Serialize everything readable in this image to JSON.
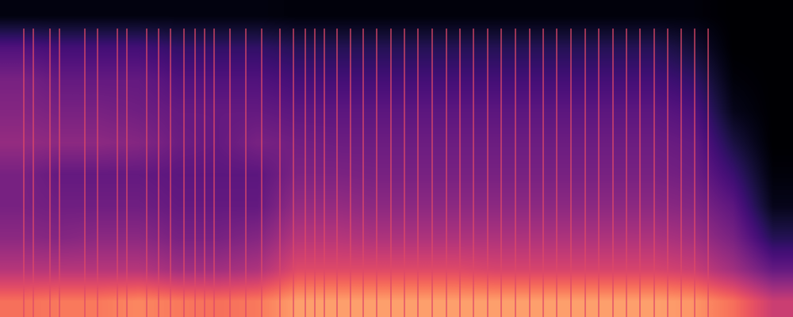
{
  "chart_data": {
    "type": "spectrogram",
    "color": "magma",
    "tick_labels": false,
    "grid": false,
    "xlim": [
      0,
      100
    ],
    "ylim": [
      0,
      100
    ],
    "clim": [
      0,
      1
    ],
    "cells": [
      [
        0.7,
        0.72,
        0.72,
        0.75,
        0.72,
        0.7,
        0.72,
        0.8,
        0.8,
        0.8,
        0.8,
        0.8,
        0.8,
        0.8,
        0.8,
        0.8,
        0.8,
        0.78,
        0.7,
        0.55
      ],
      [
        0.5,
        0.5,
        0.5,
        0.5,
        0.45,
        0.45,
        0.48,
        0.6,
        0.6,
        0.6,
        0.6,
        0.6,
        0.58,
        0.58,
        0.58,
        0.58,
        0.58,
        0.55,
        0.45,
        0.3
      ],
      [
        0.4,
        0.38,
        0.4,
        0.4,
        0.35,
        0.35,
        0.38,
        0.5,
        0.5,
        0.48,
        0.48,
        0.48,
        0.48,
        0.48,
        0.48,
        0.48,
        0.48,
        0.45,
        0.35,
        0.15
      ],
      [
        0.35,
        0.33,
        0.33,
        0.33,
        0.3,
        0.3,
        0.3,
        0.42,
        0.42,
        0.4,
        0.4,
        0.4,
        0.4,
        0.4,
        0.4,
        0.4,
        0.4,
        0.38,
        0.28,
        0.05
      ],
      [
        0.35,
        0.3,
        0.3,
        0.3,
        0.28,
        0.28,
        0.28,
        0.36,
        0.36,
        0.35,
        0.35,
        0.35,
        0.35,
        0.35,
        0.35,
        0.35,
        0.35,
        0.33,
        0.2,
        0.02
      ],
      [
        0.42,
        0.4,
        0.4,
        0.38,
        0.32,
        0.3,
        0.35,
        0.33,
        0.32,
        0.32,
        0.32,
        0.32,
        0.32,
        0.32,
        0.32,
        0.32,
        0.32,
        0.3,
        0.12,
        0.0
      ],
      [
        0.38,
        0.35,
        0.35,
        0.33,
        0.3,
        0.3,
        0.3,
        0.28,
        0.28,
        0.28,
        0.28,
        0.28,
        0.28,
        0.28,
        0.28,
        0.28,
        0.28,
        0.25,
        0.05,
        0.0
      ],
      [
        0.35,
        0.3,
        0.3,
        0.3,
        0.25,
        0.25,
        0.25,
        0.22,
        0.22,
        0.22,
        0.22,
        0.22,
        0.22,
        0.22,
        0.22,
        0.22,
        0.22,
        0.18,
        0.02,
        0.0
      ],
      [
        0.25,
        0.22,
        0.22,
        0.22,
        0.18,
        0.18,
        0.18,
        0.15,
        0.15,
        0.15,
        0.15,
        0.15,
        0.15,
        0.15,
        0.15,
        0.15,
        0.15,
        0.1,
        0.0,
        0.0
      ],
      [
        0.03,
        0.03,
        0.03,
        0.03,
        0.03,
        0.03,
        0.03,
        0.02,
        0.02,
        0.02,
        0.02,
        0.02,
        0.02,
        0.02,
        0.02,
        0.02,
        0.02,
        0.02,
        0.0,
        0.0
      ]
    ],
    "clicks": [
      3.0,
      4.2,
      6.3,
      7.5,
      10.7,
      12.3,
      14.8,
      16.0,
      18.5,
      20.0,
      21.5,
      23.2,
      24.6,
      25.8,
      27.0,
      29.0,
      31.0,
      33.0,
      35.3,
      37.0,
      38.5,
      39.7,
      40.9,
      42.5,
      44.2,
      45.8,
      47.5,
      49.3,
      51.0,
      52.7,
      54.5,
      56.3,
      58.0,
      59.7,
      61.5,
      63.2,
      65.0,
      66.8,
      68.5,
      70.2,
      72.0,
      73.8,
      75.5,
      77.3,
      79.0,
      80.7,
      82.5,
      84.2,
      85.9,
      87.6,
      89.3
    ],
    "click_top": 91
  }
}
